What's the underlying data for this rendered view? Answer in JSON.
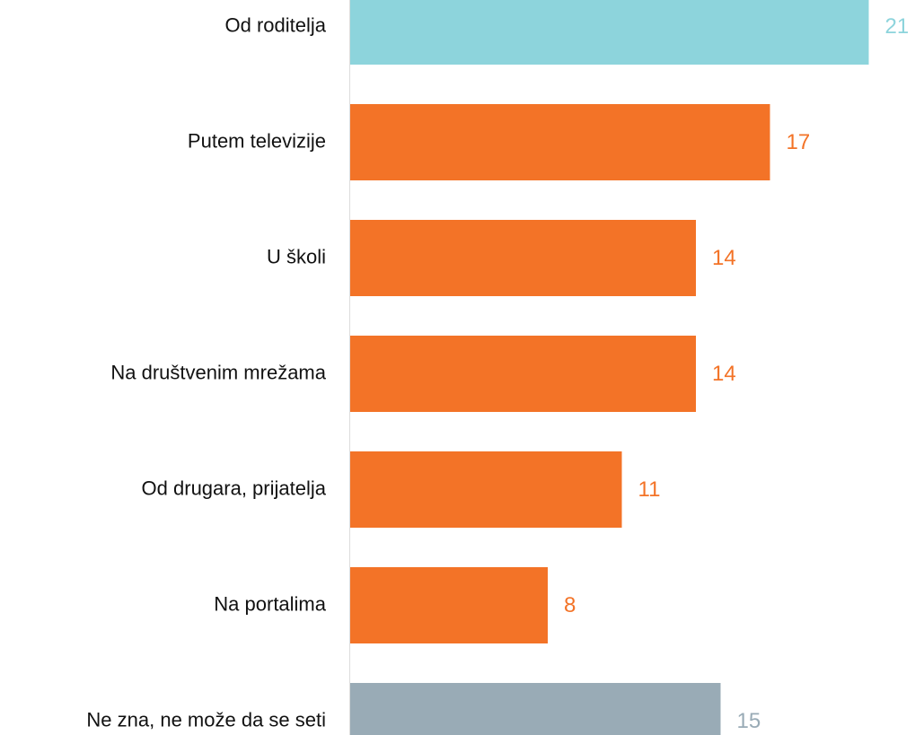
{
  "chart_data": {
    "type": "bar",
    "orientation": "horizontal",
    "categories": [
      "Od roditelja",
      "Putem televizije",
      "U školi",
      "Na društvenim mrežama",
      "Od drugara, prijatelja",
      "Na portalima",
      "Ne zna, ne može da se seti"
    ],
    "values": [
      21,
      17,
      14,
      14,
      11,
      8,
      15
    ],
    "colors": [
      "#8dd4dc",
      "#f37327",
      "#f37327",
      "#f37327",
      "#f37327",
      "#f37327",
      "#99abb6"
    ],
    "xlim": [
      0,
      22
    ]
  }
}
